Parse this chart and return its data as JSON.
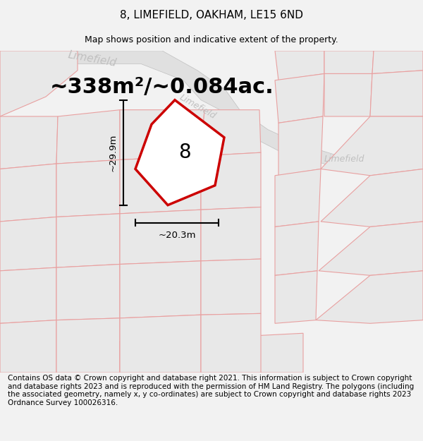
{
  "title": "8, LIMEFIELD, OAKHAM, LE15 6ND",
  "subtitle": "Map shows position and indicative extent of the property.",
  "area_text": "~338m²/~0.084ac.",
  "label_8": "8",
  "dim_height": "~29.9m",
  "dim_width": "~20.3m",
  "footer": "Contains OS data © Crown copyright and database right 2021. This information is subject to Crown copyright and database rights 2023 and is reproduced with the permission of HM Land Registry. The polygons (including the associated geometry, namely x, y co-ordinates) are subject to Crown copyright and database rights 2023 Ordnance Survey 100026316.",
  "bg_color": "#f2f2f2",
  "map_bg": "#ffffff",
  "road_fill": "#e0e0e0",
  "road_stroke": "#c0c0c0",
  "plot_fill": "#e8e8e8",
  "plot_stroke": "#e8a0a0",
  "highlight_stroke": "#cc0000",
  "highlight_fill": "#ffffff",
  "road_label_color": "#c0c0c0",
  "figsize": [
    6.0,
    6.25
  ],
  "dpi": 100,
  "title_fontsize": 11,
  "subtitle_fontsize": 9,
  "footer_fontsize": 7.5,
  "area_fontsize": 22,
  "label_fontsize": 20,
  "dim_fontsize": 9.5,
  "road_label_fontsize": 11
}
